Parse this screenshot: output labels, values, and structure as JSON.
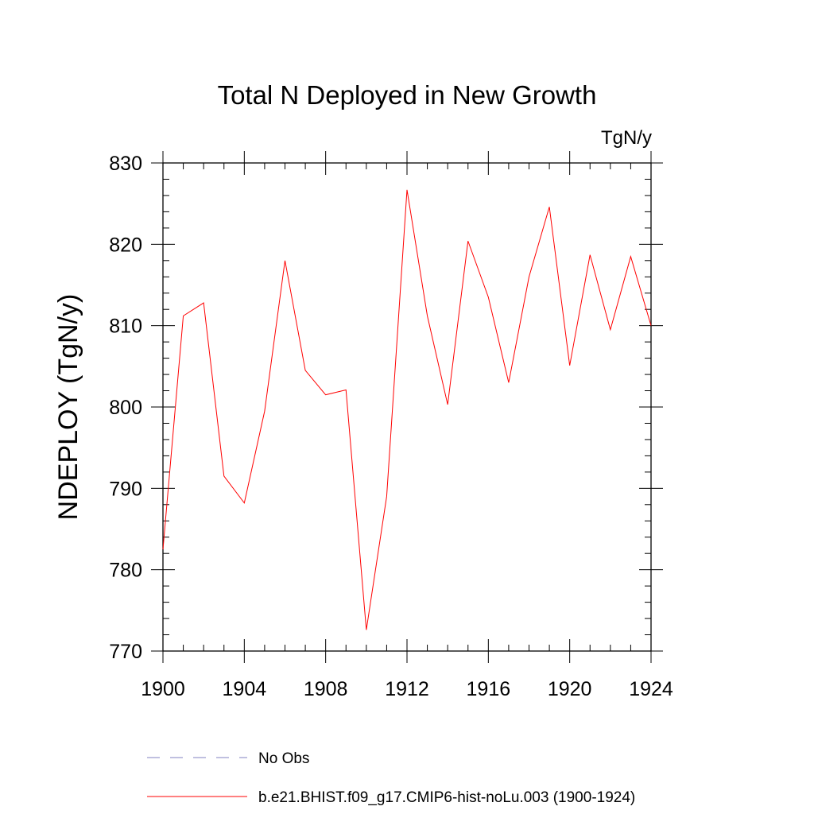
{
  "chart_data": {
    "type": "line",
    "title": "Total N Deployed in New Growth",
    "units_label": "TgN/y",
    "xlabel": "",
    "ylabel": "NDEPLOY  (TgN/y)",
    "xlim": [
      1900,
      1924
    ],
    "ylim": [
      770,
      830
    ],
    "x_ticks": [
      "1900",
      "1904",
      "1908",
      "1912",
      "1916",
      "1920",
      "1924"
    ],
    "y_ticks": [
      "770",
      "780",
      "790",
      "800",
      "810",
      "820",
      "830"
    ],
    "grid": false,
    "legend_placement": "bottom",
    "series": [
      {
        "name": "b.e21.BHIST.f09_g17.CMIP6-hist-noLu.003 (1900-1924)",
        "color": "#ff0000",
        "style": "solid",
        "x": [
          1900,
          1901,
          1902,
          1903,
          1904,
          1905,
          1906,
          1907,
          1908,
          1909,
          1910,
          1911,
          1912,
          1913,
          1914,
          1915,
          1916,
          1917,
          1918,
          1919,
          1920,
          1921,
          1922,
          1923,
          1924
        ],
        "values": [
          782.5,
          811.2,
          812.8,
          791.5,
          788.2,
          799.5,
          818.0,
          804.5,
          801.5,
          802.1,
          772.6,
          789.0,
          826.7,
          811.2,
          800.3,
          820.4,
          813.5,
          803.0,
          816.0,
          824.6,
          805.1,
          818.7,
          809.5,
          818.5,
          810.0
        ]
      }
    ],
    "legend": [
      {
        "label": "No Obs",
        "color": "#8080c0",
        "style": "dashed"
      },
      {
        "label": "b.e21.BHIST.f09_g17.CMIP6-hist-noLu.003 (1900-1924)",
        "color": "#ff0000",
        "style": "solid"
      }
    ]
  }
}
